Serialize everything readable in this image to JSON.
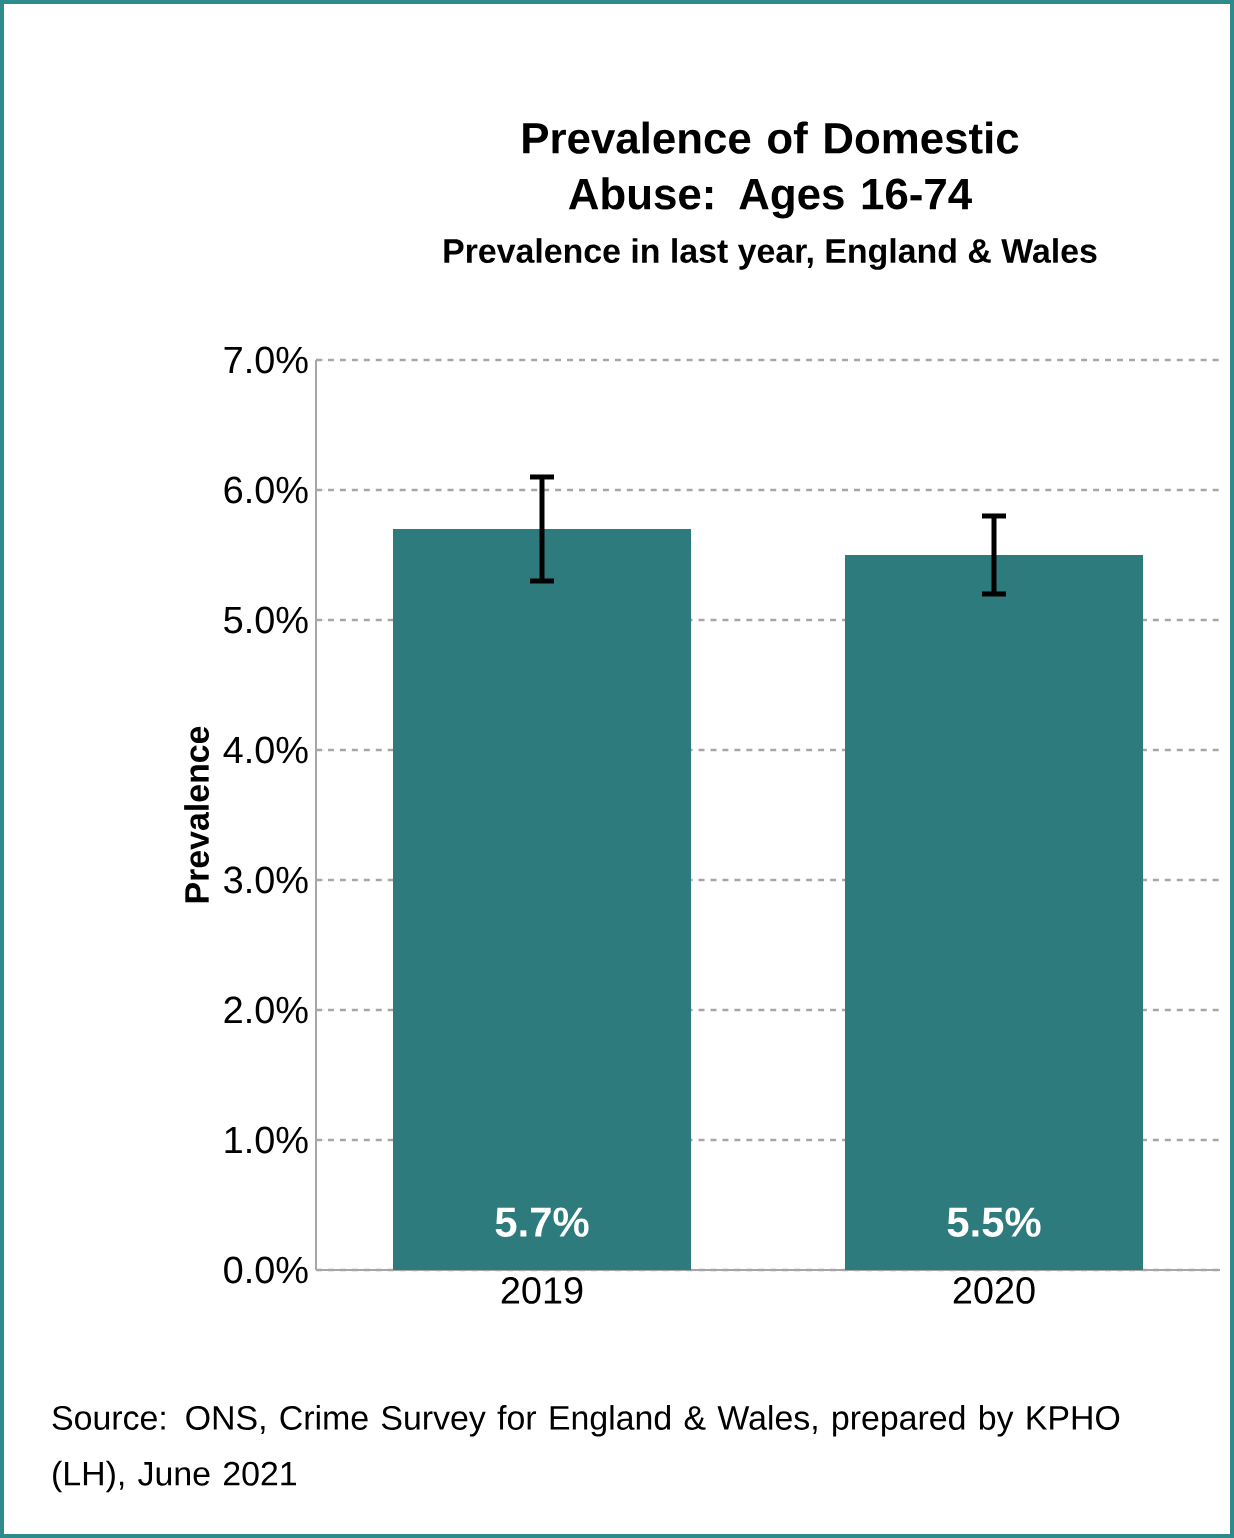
{
  "chart_data": {
    "type": "bar",
    "title": "Prevalence of Domestic Abuse: Ages 16-74",
    "subtitle": "Prevalence in last year, England & Wales",
    "ylabel": "Prevalence",
    "categories": [
      "2019",
      "2020"
    ],
    "values": [
      5.7,
      5.5
    ],
    "value_labels": [
      "5.7%",
      "5.5%"
    ],
    "errors": [
      [
        5.3,
        6.1
      ],
      [
        5.2,
        5.8
      ]
    ],
    "color": "#2e7b7d",
    "ylim": [
      0,
      7
    ],
    "yticks": [
      {
        "value": 0,
        "label": "0.0%"
      },
      {
        "value": 1,
        "label": "1.0%"
      },
      {
        "value": 2,
        "label": "2.0%"
      },
      {
        "value": 3,
        "label": "3.0%"
      },
      {
        "value": 4,
        "label": "4.0%"
      },
      {
        "value": 5,
        "label": "5.0%"
      },
      {
        "value": 6,
        "label": "6.0%"
      },
      {
        "value": 7,
        "label": "7.0%"
      }
    ],
    "grid": "y",
    "annotations": [
      "Source: ONS, Crime Survey for England & Wales, prepared by KPHO (LH), June 2021"
    ]
  }
}
